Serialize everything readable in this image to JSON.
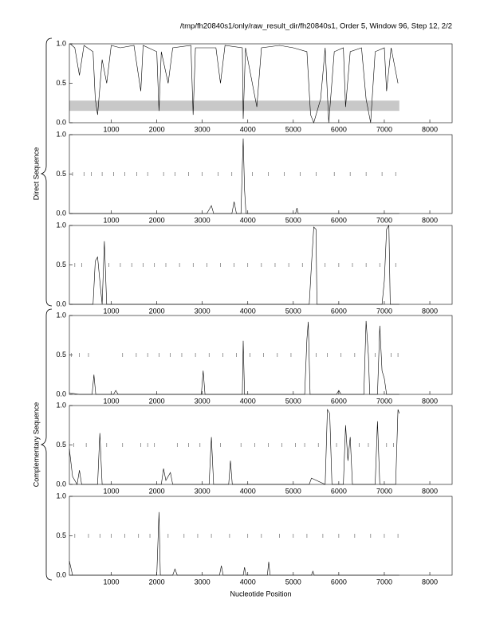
{
  "header": "/tmp/fh20840s1/only/raw_result_dir/fh20840s1, Order 5, Window 96, Step 12, 2/2",
  "groups": [
    "Direct Sequence",
    "Complementary Sequence"
  ],
  "x_label": "Nucleotide Position",
  "chart_data": [
    {
      "type": "line",
      "xlim": [
        80,
        8490
      ],
      "ylim": [
        0,
        1
      ],
      "yticks": [
        {
          "value": 0,
          "label": "0.0"
        },
        {
          "value": 0.5,
          "label": "0.5"
        },
        {
          "value": 1,
          "label": "1.0"
        }
      ],
      "xticks": [
        1000,
        2000,
        3000,
        4000,
        5000,
        6000,
        7000,
        8000
      ],
      "band": {
        "y": [
          0.15,
          0.28
        ],
        "x": [
          80,
          7330
        ],
        "color": "#c8c8c8"
      },
      "color": "#000000",
      "x": [
        100,
        200,
        300,
        400,
        600,
        650,
        700,
        800,
        900,
        1000,
        1200,
        1500,
        1650,
        1700,
        2000,
        2050,
        2100,
        2250,
        2350,
        2750,
        2800,
        2850,
        3300,
        3400,
        3500,
        3880,
        3900,
        3950,
        4200,
        4300,
        4700,
        5000,
        5300,
        5380,
        5450,
        5600,
        5700,
        5780,
        5900,
        6100,
        6150,
        6250,
        6500,
        6600,
        6700,
        6800,
        7000,
        7050,
        7150,
        7300
      ],
      "values": [
        1.0,
        0.95,
        0.6,
        0.98,
        0.9,
        0.3,
        0.1,
        0.8,
        0.5,
        0.98,
        0.95,
        0.98,
        0.4,
        0.98,
        0.9,
        0.15,
        0.9,
        0.5,
        0.95,
        0.98,
        0.1,
        0.95,
        0.95,
        0.5,
        0.98,
        0.95,
        0.05,
        0.95,
        0.2,
        0.95,
        0.98,
        0.95,
        0.9,
        0.1,
        0.0,
        0.3,
        0.95,
        0.0,
        0.9,
        0.95,
        0.2,
        0.9,
        0.95,
        0.3,
        0.0,
        0.9,
        0.95,
        0.4,
        0.95,
        0.5
      ]
    },
    {
      "type": "line",
      "xlim": [
        80,
        8490
      ],
      "ylim": [
        0,
        1
      ],
      "yticks": [
        {
          "value": 0,
          "label": "0.0"
        },
        {
          "value": 0.5,
          "label": "0.5"
        },
        {
          "value": 1,
          "label": "1.0"
        }
      ],
      "xticks": [
        1000,
        2000,
        3000,
        4000,
        5000,
        6000,
        7000,
        8000
      ],
      "color": "#000000",
      "x": [
        80,
        3100,
        3200,
        3250,
        3650,
        3700,
        3750,
        3850,
        3880,
        3900,
        3930,
        3960,
        5050,
        5080,
        5110,
        7330
      ],
      "values": [
        0,
        0,
        0.1,
        0,
        0,
        0.15,
        0,
        0,
        0.6,
        0.95,
        0.3,
        0,
        0,
        0.07,
        0,
        0
      ],
      "orf_x": [
        150,
        400,
        560,
        800,
        1050,
        1300,
        1560,
        1800,
        2150,
        2400,
        2700,
        3000,
        3350,
        3650,
        4100,
        4450,
        4800,
        5150,
        5500,
        5900,
        6250,
        6600,
        6950,
        7250
      ]
    },
    {
      "type": "line",
      "xlim": [
        80,
        8490
      ],
      "ylim": [
        0,
        1
      ],
      "yticks": [
        {
          "value": 0,
          "label": "0.0"
        },
        {
          "value": 0.5,
          "label": "0.5"
        },
        {
          "value": 1,
          "label": "1.0"
        }
      ],
      "xticks": [
        1000,
        2000,
        3000,
        4000,
        5000,
        6000,
        7000,
        8000
      ],
      "color": "#000000",
      "x": [
        80,
        600,
        650,
        700,
        750,
        800,
        850,
        880,
        900,
        5350,
        5400,
        5450,
        5500,
        5520,
        5600,
        6950,
        7000,
        7050,
        7100,
        7130,
        7330
      ],
      "values": [
        0,
        0,
        0.55,
        0.6,
        0.3,
        0,
        0.8,
        0.3,
        0,
        0,
        0.5,
        0.98,
        0.95,
        0,
        0,
        0,
        0.3,
        0.95,
        1.0,
        0,
        0
      ],
      "orf_x": [
        200,
        350,
        950,
        1200,
        1450,
        1700,
        1950,
        2200,
        2500,
        2800,
        3100,
        3400,
        3700,
        4000,
        4300,
        4600,
        4900,
        5200,
        5700,
        6000,
        6300,
        6600,
        6900,
        7250
      ]
    },
    {
      "type": "line",
      "xlim": [
        80,
        8490
      ],
      "ylim": [
        0,
        1
      ],
      "yticks": [
        {
          "value": 0,
          "label": "0.0"
        },
        {
          "value": 0.5,
          "label": "0.5"
        },
        {
          "value": 1,
          "label": "1.0"
        }
      ],
      "xticks": [
        1000,
        2000,
        3000,
        4000,
        5000,
        6000,
        7000,
        8000
      ],
      "color": "#000000",
      "x": [
        80,
        300,
        580,
        620,
        660,
        1050,
        1100,
        1150,
        2980,
        3020,
        3060,
        3880,
        3900,
        3930,
        5250,
        5300,
        5330,
        5370,
        5950,
        6000,
        6050,
        6550,
        6600,
        6650,
        6680,
        6850,
        6900,
        6950,
        7000,
        7050,
        7330
      ],
      "values": [
        0.02,
        0,
        0,
        0.25,
        0,
        0,
        0.05,
        0,
        0,
        0.3,
        0,
        0,
        0.68,
        0,
        0,
        0.7,
        0.92,
        0,
        0,
        0.05,
        0,
        0,
        0.93,
        0.5,
        0,
        0,
        0.87,
        0.3,
        0.2,
        0,
        0
      ],
      "orf_x": [
        120,
        300,
        500,
        1250,
        1550,
        1800,
        2050,
        2300,
        2550,
        2850,
        3150,
        3450,
        3750,
        4050,
        4350,
        4650,
        4950,
        5500,
        5750,
        6050,
        6350,
        6800,
        7150,
        7300
      ]
    },
    {
      "type": "line",
      "xlim": [
        80,
        8490
      ],
      "ylim": [
        0,
        1
      ],
      "yticks": [
        {
          "value": 0,
          "label": "0.0"
        },
        {
          "value": 0.5,
          "label": "0.5"
        },
        {
          "value": 1,
          "label": "1.0"
        }
      ],
      "xticks": [
        1000,
        2000,
        3000,
        4000,
        5000,
        6000,
        7000,
        8000
      ],
      "color": "#000000",
      "x": [
        80,
        150,
        250,
        300,
        350,
        700,
        750,
        800,
        2100,
        2150,
        2200,
        2300,
        2350,
        3150,
        3200,
        3250,
        3580,
        3620,
        3660,
        5350,
        5400,
        5700,
        5750,
        5800,
        5850,
        6100,
        6150,
        6200,
        6250,
        6300,
        6800,
        6850,
        6900,
        7250,
        7300,
        7330
      ],
      "values": [
        0.45,
        0.1,
        0,
        0.18,
        0,
        0,
        0.65,
        0,
        0,
        0.2,
        0.05,
        0.15,
        0,
        0,
        0.6,
        0,
        0,
        0.3,
        0,
        0,
        0.08,
        0,
        0.95,
        0.9,
        0,
        0,
        0.75,
        0.3,
        0.6,
        0,
        0,
        0.8,
        0,
        0,
        0.95,
        0.9
      ],
      "orf_x": [
        180,
        450,
        900,
        1250,
        1650,
        1800,
        1950,
        2450,
        2700,
        2950,
        3400,
        3850,
        4150,
        4450,
        4750,
        5050,
        5250,
        5550,
        5950,
        6450,
        6650,
        7050,
        7200
      ]
    },
    {
      "type": "line",
      "xlim": [
        80,
        8490
      ],
      "ylim": [
        0,
        1
      ],
      "yticks": [
        {
          "value": 0,
          "label": "0.0"
        },
        {
          "value": 0.5,
          "label": "0.5"
        },
        {
          "value": 1,
          "label": "1.0"
        }
      ],
      "xticks": [
        1000,
        2000,
        3000,
        4000,
        5000,
        6000,
        7000,
        8000
      ],
      "color": "#000000",
      "x": [
        80,
        150,
        2000,
        2050,
        2080,
        2350,
        2400,
        2450,
        3380,
        3420,
        3460,
        3900,
        3930,
        3960,
        4430,
        4460,
        4490,
        5400,
        5430,
        5460,
        7330
      ],
      "values": [
        0.18,
        0,
        0,
        0.8,
        0,
        0,
        0.08,
        0,
        0,
        0.12,
        0,
        0,
        0.1,
        0,
        0,
        0.17,
        0,
        0,
        0.05,
        0,
        0
      ],
      "orf_x": [
        200,
        500,
        750,
        1000,
        1300,
        1600,
        1850,
        2250,
        2600,
        2900,
        3200,
        3600,
        4000,
        4300,
        4700,
        5000,
        5300,
        5650,
        6000,
        6350,
        6700,
        7000,
        7300
      ]
    }
  ]
}
